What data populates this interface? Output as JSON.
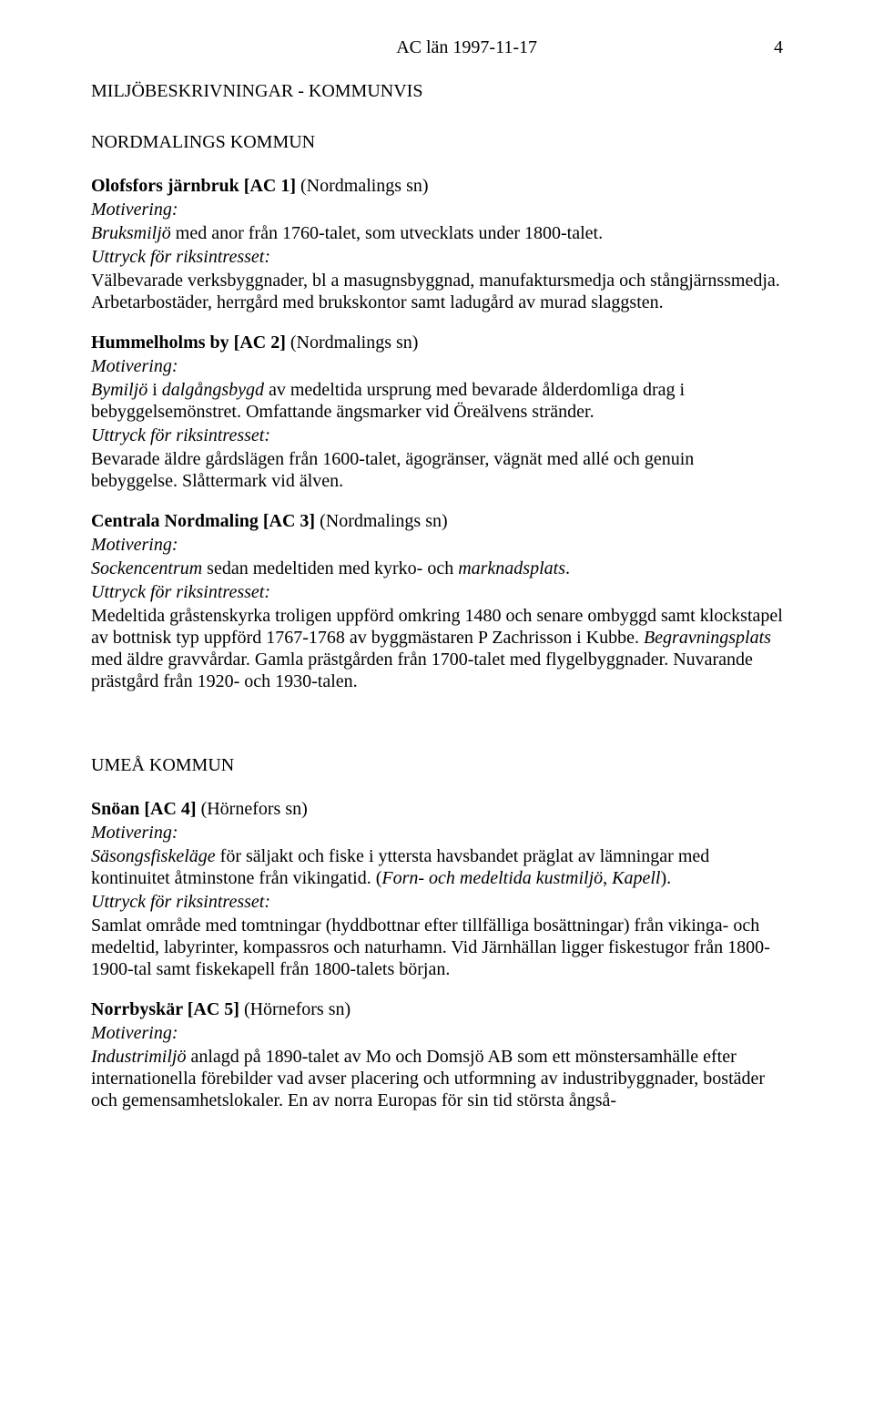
{
  "header": {
    "left": "AC län 1997-11-17",
    "page_number": "4"
  },
  "doc": {
    "main_heading": "MILJÖBESKRIVNINGAR - KOMMUNVIS",
    "section1_heading": "NORDMALINGS KOMMUN",
    "labels": {
      "motivation": "Motivering:",
      "expr": "Uttryck för riksintresset:"
    },
    "entry1": {
      "title_bold": "Olofsfors järnbruk [AC 1]",
      "title_rest": " (Nordmalings sn)",
      "motiv_italic_a": "Bruksmiljö",
      "motiv_plain": " med anor från 1760-talet, som utvecklats under 1800-talet.",
      "expr_text": "Välbevarade verksbyggnader, bl a masugnsbyggnad, manufaktursmedja och stångjärnssmedja. Arbetarbostäder, herrgård med brukskontor samt ladugård av murad slaggsten."
    },
    "entry2": {
      "title_bold": "Hummelholms by [AC 2]",
      "title_rest": " (Nordmalings sn)",
      "motiv_italic_a": "Bymiljö",
      "motiv_plain_a": " i ",
      "motiv_italic_b": "dalgångsbygd",
      "motiv_plain_b": " av medeltida ursprung med bevarade ålderdomliga drag i bebyggelsemönstret. Omfattande ängsmarker vid Öreälvens stränder.",
      "expr_text": "Bevarade äldre gårdslägen från 1600-talet, ägogränser, vägnät med allé och genuin bebyggelse. Slåttermark vid älven."
    },
    "entry3": {
      "title_bold": "Centrala Nordmaling [AC 3]",
      "title_rest": " (Nordmalings sn)",
      "motiv_italic_a": "Sockencentrum",
      "motiv_plain_a": " sedan medeltiden med kyrko- och ",
      "motiv_italic_b": "marknadsplats",
      "motiv_plain_b": ".",
      "expr_plain_a": "Medeltida gråstenskyrka troligen uppförd omkring 1480 och senare ombyggd samt klockstapel av bottnisk typ uppförd 1767-1768 av byggmästaren P Zachrisson i Kubbe. ",
      "expr_italic_a": "Begravningsplats",
      "expr_plain_b": " med äldre gravvårdar. Gamla prästgården från 1700-talet med flygelbyggnader. Nuvarande prästgård från 1920- och 1930-talen."
    },
    "section2_heading": "UMEÅ KOMMUN",
    "entry4": {
      "title_bold": "Snöan [AC 4]",
      "title_rest": " (Hörnefors sn)",
      "motiv_italic_a": "Säsongsfiskeläge",
      "motiv_plain_a": " för säljakt och fiske i yttersta havsbandet präglat av lämningar med kontinuitet åtminstone från vikingatid. (",
      "motiv_italic_b": "Forn- och medeltida kustmiljö",
      "motiv_plain_b": ", ",
      "motiv_italic_c": "Kapell",
      "motiv_plain_c": ").",
      "expr_text": "Samlat område med tomtningar (hyddbottnar efter tillfälliga bosättningar) från vikinga- och medeltid, labyrinter, kompassros och naturhamn. Vid Järnhällan ligger fiskestugor från 1800-1900-tal samt fiskekapell från 1800-talets början."
    },
    "entry5": {
      "title_bold": "Norrbyskär [AC 5]",
      "title_rest": "  (Hörnefors sn)",
      "motiv_italic_a": "Industrimiljö",
      "motiv_plain_a": " anlagd på 1890-talet av Mo och Domsjö AB som ett mönstersamhälle efter internationella förebilder vad avser placering och utformning av industribyggnader, bostäder och gemensamhetslokaler. En av norra Europas för sin tid största ångså-"
    }
  }
}
